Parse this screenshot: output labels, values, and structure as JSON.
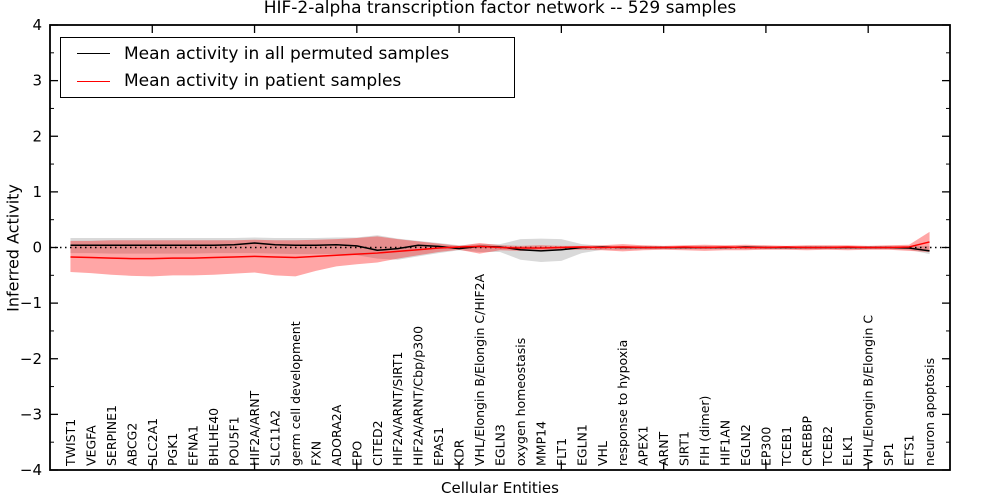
{
  "figure": {
    "title": "HIF-2-alpha transcription factor network -- 529 samples",
    "xlabel": "Cellular Entities",
    "ylabel": "Inferred Activity",
    "legend": {
      "items": [
        {
          "label": "Mean activity in all permuted samples",
          "color": "#000000"
        },
        {
          "label": "Mean activity in patient samples",
          "color": "#ff0000"
        }
      ]
    }
  },
  "chart_data": {
    "type": "line",
    "title": "HIF-2-alpha transcription factor network -- 529 samples",
    "xlabel": "Cellular Entities",
    "ylabel": "Inferred Activity",
    "ylim": [
      -4,
      4
    ],
    "xlim": [
      0,
      44
    ],
    "grid": false,
    "legend_position": "upper left",
    "zero_line_style": "dotted",
    "yticks_major": [
      4,
      3,
      2,
      1,
      0,
      -1,
      -2,
      -3,
      -4
    ],
    "ytick_labels": [
      "4",
      "3",
      "2",
      "1",
      "0",
      "−1",
      "−2",
      "−3",
      "−4"
    ],
    "ytick_minor_step": 0.5,
    "xticks_major": [
      5,
      10,
      15,
      20,
      25,
      30,
      35,
      40
    ],
    "categories": [
      "TWIST1",
      "VEGFA",
      "SERPINE1",
      "ABCG2",
      "SLC2A1",
      "PGK1",
      "EFNA1",
      "BHLHE40",
      "POU5F1",
      "HIF2A/ARNT",
      "SLC11A2",
      "germ cell development",
      "FXN",
      "ADORA2A",
      "EPO",
      "CITED2",
      "HIF2A/ARNT/SIRT1",
      "HIF2A/ARNT/Cbp/p300",
      "EPAS1",
      "KDR",
      "VHL/Elongin B/Elongin C/HIF2A",
      "EGLN3",
      "oxygen homeostasis",
      "MMP14",
      "FLT1",
      "EGLN1",
      "VHL",
      "response to hypoxia",
      "APEX1",
      "ARNT",
      "SIRT1",
      "FIH (dimer)",
      "HIF1AN",
      "EGLN2",
      "EP300",
      "TCEB1",
      "CREBBP",
      "TCEB2",
      "ELK1",
      "VHL/Elongin B/Elongin C",
      "SP1",
      "ETS1",
      "neuron apoptosis"
    ],
    "series": [
      {
        "name": "Mean activity in all permuted samples",
        "color": "#000000",
        "linewidth": 1.5,
        "values": [
          0.04,
          0.04,
          0.04,
          0.04,
          0.04,
          0.04,
          0.04,
          0.04,
          0.05,
          0.08,
          0.05,
          0.04,
          0.04,
          0.05,
          0.03,
          -0.05,
          -0.02,
          0.04,
          0.02,
          -0.02,
          0.02,
          0.01,
          -0.04,
          -0.06,
          -0.04,
          0.0,
          0.01,
          0.0,
          0.0,
          0.0,
          0.0,
          0.0,
          0.0,
          0.01,
          0.0,
          0.0,
          0.0,
          0.0,
          0.0,
          0.0,
          0.0,
          -0.01,
          -0.06
        ]
      },
      {
        "name": "Mean activity in patient samples",
        "color": "#ff0000",
        "linewidth": 1.5,
        "values": [
          -0.17,
          -0.18,
          -0.19,
          -0.2,
          -0.2,
          -0.19,
          -0.19,
          -0.18,
          -0.17,
          -0.16,
          -0.17,
          -0.18,
          -0.16,
          -0.14,
          -0.12,
          -0.1,
          -0.07,
          -0.04,
          -0.01,
          0.01,
          0.02,
          0.0,
          -0.01,
          -0.01,
          0.0,
          0.01,
          0.0,
          0.01,
          0.0,
          0.0,
          0.01,
          0.0,
          0.01,
          0.0,
          0.0,
          0.01,
          0.0,
          0.0,
          0.01,
          0.0,
          0.0,
          0.01,
          0.1
        ]
      }
    ],
    "bands": [
      {
        "name": "permuted-range",
        "color": "#000000",
        "opacity": 0.15,
        "upper": [
          0.17,
          0.17,
          0.17,
          0.17,
          0.17,
          0.17,
          0.17,
          0.17,
          0.17,
          0.18,
          0.17,
          0.17,
          0.17,
          0.18,
          0.18,
          0.22,
          0.16,
          0.12,
          0.08,
          0.04,
          0.06,
          0.06,
          0.15,
          0.16,
          0.15,
          0.06,
          0.03,
          0.03,
          0.02,
          0.02,
          0.02,
          0.02,
          0.02,
          0.02,
          0.02,
          0.02,
          0.02,
          0.02,
          0.02,
          0.02,
          0.02,
          0.02,
          0.03
        ],
        "lower": [
          -0.1,
          -0.1,
          -0.11,
          -0.11,
          -0.11,
          -0.11,
          -0.11,
          -0.1,
          -0.1,
          -0.1,
          -0.11,
          -0.12,
          -0.12,
          -0.12,
          -0.14,
          -0.2,
          -0.22,
          -0.16,
          -0.1,
          -0.05,
          -0.08,
          -0.08,
          -0.22,
          -0.26,
          -0.24,
          -0.1,
          -0.04,
          -0.04,
          -0.03,
          -0.03,
          -0.03,
          -0.03,
          -0.03,
          -0.03,
          -0.03,
          -0.03,
          -0.03,
          -0.03,
          -0.03,
          -0.03,
          -0.03,
          -0.04,
          -0.12
        ]
      },
      {
        "name": "patient-range",
        "color": "#ff0000",
        "opacity": 0.35,
        "upper": [
          0.12,
          0.12,
          0.13,
          0.13,
          0.13,
          0.13,
          0.13,
          0.13,
          0.13,
          0.14,
          0.13,
          0.13,
          0.14,
          0.15,
          0.17,
          0.2,
          0.15,
          0.11,
          0.07,
          0.03,
          0.08,
          0.04,
          0.03,
          0.04,
          0.03,
          0.03,
          0.04,
          0.06,
          0.04,
          0.03,
          0.04,
          0.05,
          0.04,
          0.05,
          0.04,
          0.03,
          0.04,
          0.04,
          0.04,
          0.03,
          0.04,
          0.05,
          0.28
        ],
        "lower": [
          -0.44,
          -0.46,
          -0.49,
          -0.51,
          -0.52,
          -0.5,
          -0.5,
          -0.49,
          -0.47,
          -0.45,
          -0.5,
          -0.52,
          -0.42,
          -0.34,
          -0.3,
          -0.27,
          -0.2,
          -0.14,
          -0.08,
          -0.04,
          -0.11,
          -0.05,
          -0.06,
          -0.05,
          -0.04,
          -0.04,
          -0.05,
          -0.07,
          -0.05,
          -0.04,
          -0.05,
          -0.06,
          -0.05,
          -0.05,
          -0.04,
          -0.04,
          -0.05,
          -0.04,
          -0.05,
          -0.04,
          -0.04,
          -0.06,
          -0.08
        ]
      }
    ]
  }
}
